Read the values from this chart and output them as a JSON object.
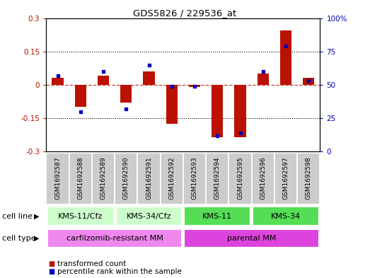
{
  "title": "GDS5826 / 229536_at",
  "samples": [
    "GSM1692587",
    "GSM1692588",
    "GSM1692589",
    "GSM1692590",
    "GSM1692591",
    "GSM1692592",
    "GSM1692593",
    "GSM1692594",
    "GSM1692595",
    "GSM1692596",
    "GSM1692597",
    "GSM1692598"
  ],
  "transformed_count": [
    0.03,
    -0.1,
    0.04,
    -0.08,
    0.06,
    -0.175,
    -0.01,
    -0.235,
    -0.235,
    0.05,
    0.245,
    0.03
  ],
  "percentile_rank": [
    57,
    30,
    60,
    32,
    65,
    49,
    49,
    12,
    14,
    60,
    79,
    53
  ],
  "bar_color": "#bb1100",
  "dot_color": "#0000bb",
  "ylim_left": [
    -0.3,
    0.3
  ],
  "ylim_right": [
    0,
    100
  ],
  "yticks_left": [
    -0.3,
    -0.15,
    0.0,
    0.15,
    0.3
  ],
  "yticks_right": [
    0,
    25,
    50,
    75,
    100
  ],
  "ytick_labels_left": [
    "-0.3",
    "-0.15",
    "0",
    "0.15",
    "0.3"
  ],
  "ytick_labels_right": [
    "0",
    "25",
    "50",
    "75",
    "100%"
  ],
  "hlines": [
    0.15,
    -0.15
  ],
  "cell_line_groups": [
    {
      "label": "KMS-11/Cfz",
      "start": 0,
      "end": 2,
      "color": "#ccffcc"
    },
    {
      "label": "KMS-34/Cfz",
      "start": 3,
      "end": 5,
      "color": "#ccffcc"
    },
    {
      "label": "KMS-11",
      "start": 6,
      "end": 8,
      "color": "#55dd55"
    },
    {
      "label": "KMS-34",
      "start": 9,
      "end": 11,
      "color": "#55dd55"
    }
  ],
  "cell_type_groups": [
    {
      "label": "carfilzomib-resistant MM",
      "start": 0,
      "end": 5,
      "color": "#ee88ee"
    },
    {
      "label": "parental MM",
      "start": 6,
      "end": 11,
      "color": "#dd44dd"
    }
  ],
  "cell_line_label": "cell line",
  "cell_type_label": "cell type",
  "legend_items": [
    {
      "color": "#bb1100",
      "label": "transformed count"
    },
    {
      "color": "#0000bb",
      "label": "percentile rank within the sample"
    }
  ],
  "background_color": "#ffffff",
  "sample_box_color": "#cccccc",
  "sample_box_border": "#ffffff"
}
